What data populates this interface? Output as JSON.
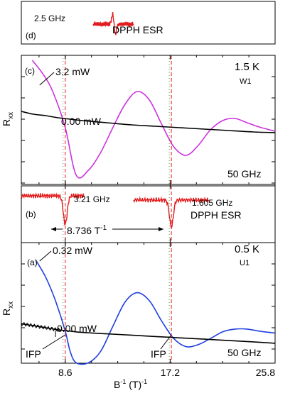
{
  "chart_data": {
    "type": "line",
    "x_axis": {
      "label_main": "B",
      "label_sup": "-1",
      "label_unit": " (T)",
      "label_unit_sup": "-1",
      "range": [
        5.0,
        25.8
      ],
      "ticks": [
        8.6,
        17.2,
        25.8
      ],
      "tick_labels": [
        "8.6",
        "17.2",
        "25.8"
      ]
    },
    "panels": {
      "d": {
        "letter": "(d)",
        "freq_label": "2.5 GHz",
        "title": "DPPH ESR",
        "color": "#e31a1c",
        "esr_center": 12.6
      },
      "c": {
        "letter": "(c)",
        "ylabel": "R",
        "ylabel_sub": "xx",
        "temp": "1.5 K",
        "sample": "W1",
        "freq": "50 GHz",
        "color_irradiated": "#cc33dd",
        "color_dark": "#000000",
        "series": [
          {
            "name": "3.2 mW",
            "x": [
              5.9,
              6.8,
              7.6,
              8.6,
              9.5,
              10.5,
              11.5,
              12.5,
              13.5,
              14.5,
              15.5,
              16.5,
              17.5,
              18.5,
              19.5,
              20.5,
              21.5,
              22.5,
              23.5,
              24.5,
              25.8
            ],
            "y": [
              1.0,
              0.8,
              0.55,
              0.05,
              -0.62,
              -0.55,
              -0.3,
              0.05,
              0.38,
              0.56,
              0.44,
              0.1,
              -0.22,
              -0.34,
              -0.2,
              0.02,
              0.15,
              0.18,
              0.12,
              0.06,
              0.0
            ]
          },
          {
            "name": "0.00 mW",
            "x": [
              5.0,
              6.0,
              7.0,
              8.0,
              9.0,
              10.0,
              12.0,
              14.0,
              16.0,
              18.0,
              20.0,
              22.0,
              24.0,
              25.8
            ],
            "y": [
              0.28,
              0.24,
              0.22,
              0.19,
              0.17,
              0.15,
              0.12,
              0.09,
              0.07,
              0.05,
              0.03,
              0.01,
              -0.01,
              -0.02
            ]
          }
        ]
      },
      "b": {
        "letter": "(b)",
        "freq_label_1": "3.21 GHz",
        "freq_label_2": "1.605 GHz",
        "title": "DPPH ESR",
        "spacing_label": "8.736 T",
        "spacing_sup": "-1",
        "color": "#e31a1c",
        "esr_dip_1": 8.6,
        "esr_dip_2": 17.3
      },
      "a": {
        "letter": "(a)",
        "ylabel": "R",
        "ylabel_sub": "xx",
        "temp": "0.5 K",
        "sample": "U1",
        "freq": "50 GHz",
        "ifp_label": "IFP",
        "color_irradiated": "#1f3fe0",
        "color_dark": "#000000",
        "series": [
          {
            "name": "0.32 mW",
            "x": [
              6.2,
              7.0,
              7.8,
              8.6,
              9.0,
              9.5,
              10.5,
              11.5,
              12.5,
              13.5,
              14.5,
              15.5,
              16.5,
              17.5,
              18.5,
              19.5,
              20.5,
              21.5,
              22.5,
              23.5,
              24.5,
              25.8
            ],
            "y": [
              1.0,
              0.75,
              0.4,
              -0.05,
              -0.35,
              -0.52,
              -0.52,
              -0.35,
              0.02,
              0.38,
              0.52,
              0.4,
              0.1,
              -0.16,
              -0.28,
              -0.25,
              -0.16,
              -0.06,
              -0.02,
              -0.02,
              -0.05,
              -0.08
            ]
          },
          {
            "name": "0.00 mW",
            "x": [
              5.0,
              6.0,
              7.0,
              8.0,
              9.0,
              10.0,
              12.0,
              14.0,
              16.0,
              18.0,
              20.0,
              22.0,
              24.0,
              25.8
            ],
            "y": [
              0.06,
              0.03,
              0.0,
              -0.03,
              -0.05,
              -0.07,
              -0.09,
              -0.11,
              -0.13,
              -0.15,
              -0.17,
              -0.19,
              -0.21,
              -0.23
            ]
          }
        ]
      }
    },
    "reference_lines": [
      8.6,
      17.3
    ]
  }
}
